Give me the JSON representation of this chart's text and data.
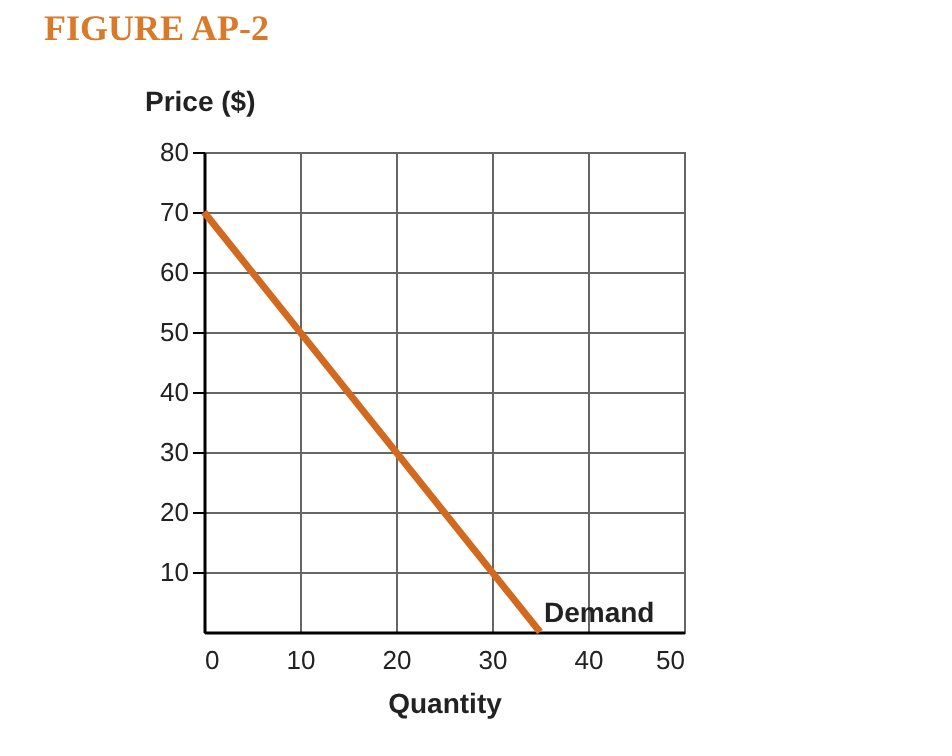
{
  "chart_data": {
    "type": "line",
    "title": "FIGURE AP-2",
    "xlabel": "Quantity",
    "ylabel": "Price ($)",
    "x": [
      0,
      35
    ],
    "series": [
      {
        "name": "Demand",
        "color": "#d2691e",
        "values": [
          70,
          0
        ]
      }
    ],
    "xlim": [
      0,
      50
    ],
    "xticks": [
      0,
      10,
      20,
      30,
      40,
      50
    ],
    "ylim": [
      0,
      80
    ],
    "yticks": [
      10,
      20,
      30,
      40,
      50,
      60,
      70,
      80
    ],
    "grid": true,
    "marker": "none",
    "line_style": "solid"
  }
}
